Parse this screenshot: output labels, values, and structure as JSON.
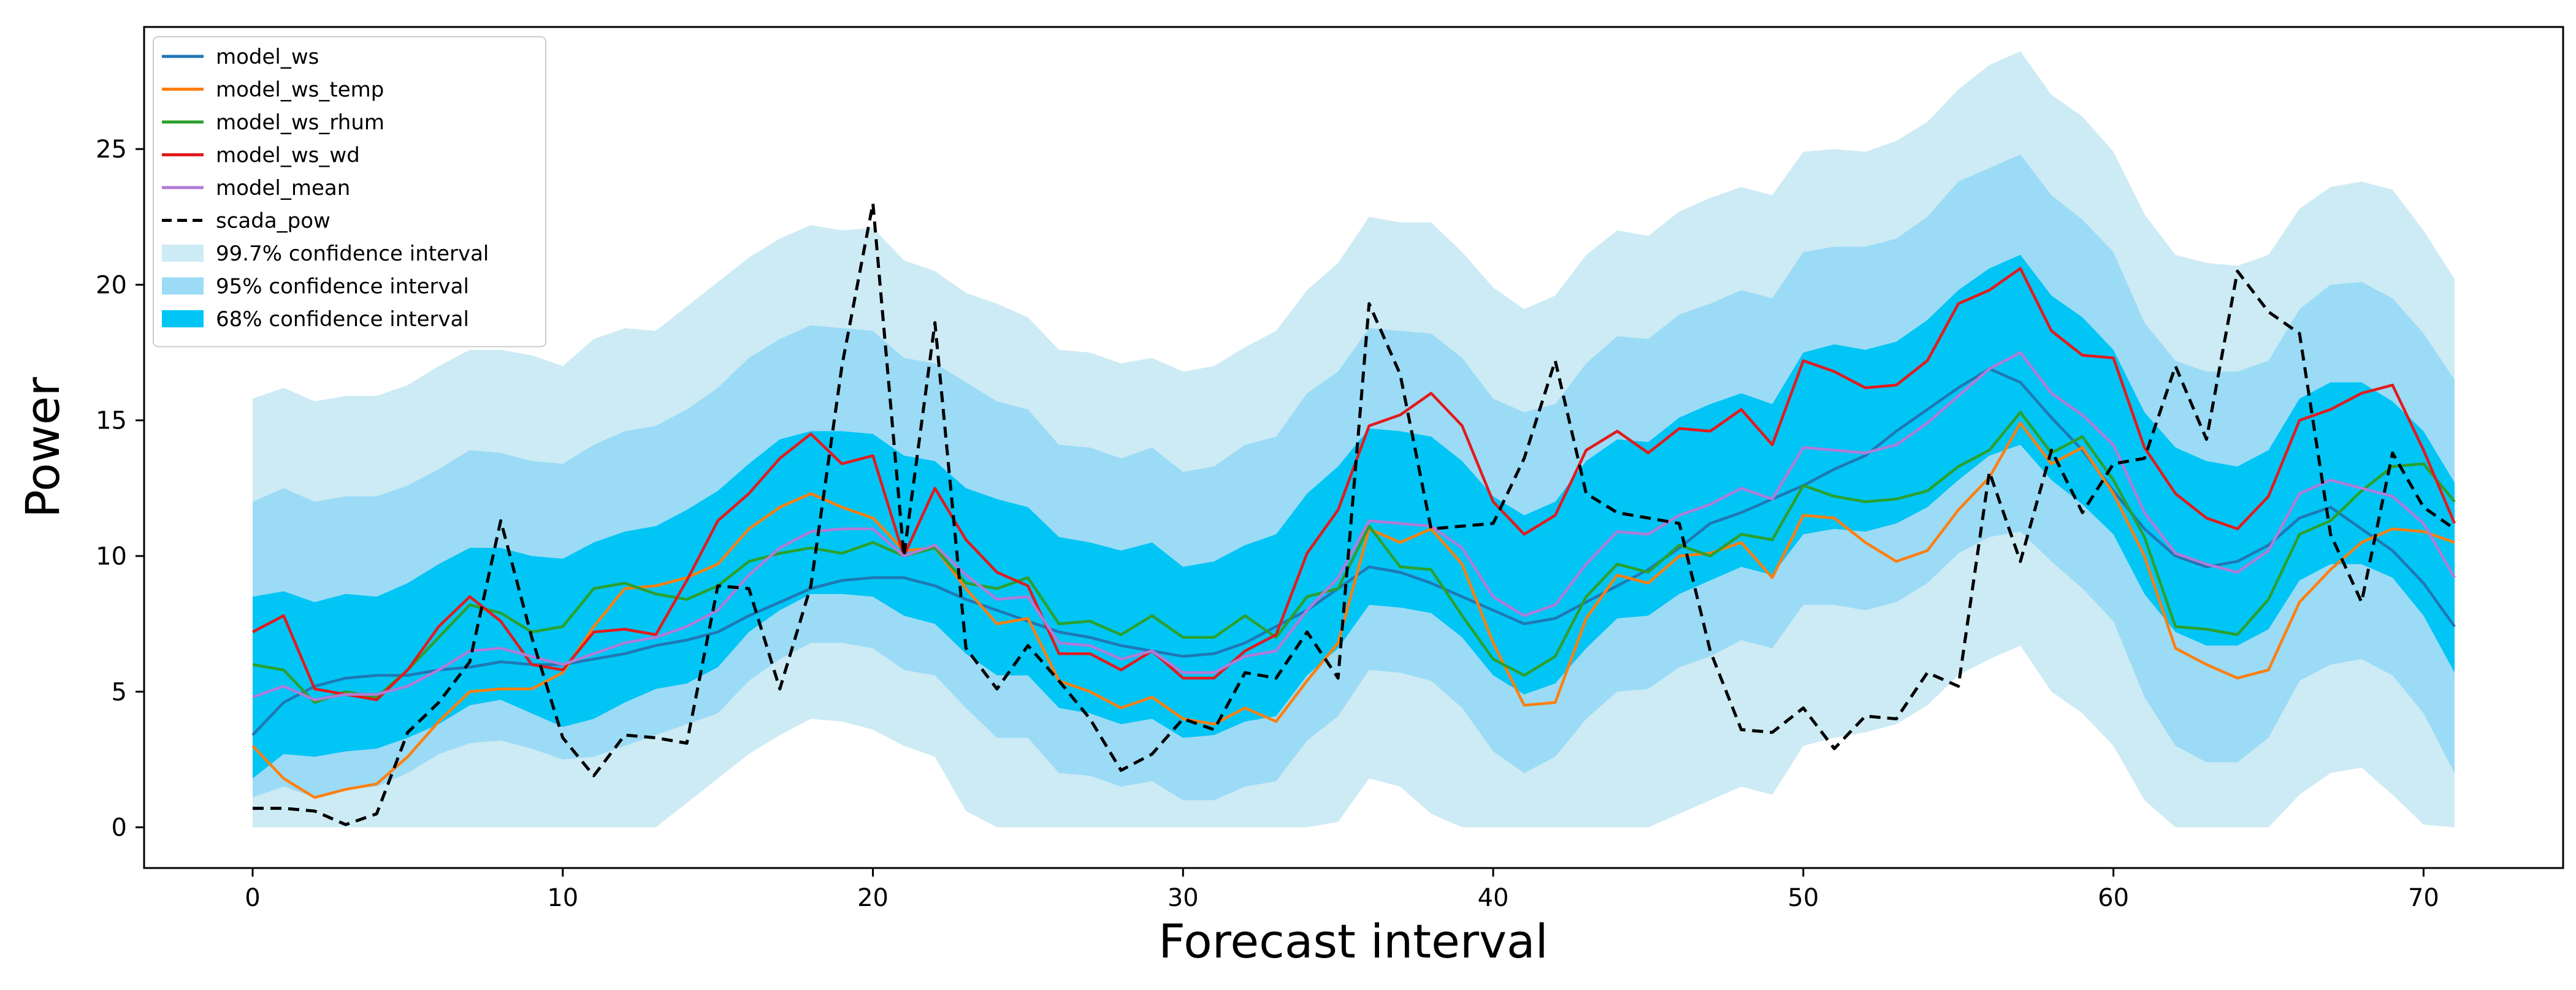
{
  "chart_data": {
    "type": "line",
    "title": "",
    "xlabel": "Forecast interval",
    "ylabel": "Power",
    "xlim": [
      -3.5,
      74.5
    ],
    "ylim": [
      -1.5,
      29.5
    ],
    "xticks": [
      0,
      10,
      20,
      30,
      40,
      50,
      60,
      70
    ],
    "yticks": [
      0,
      5,
      10,
      15,
      20,
      25
    ],
    "legend_position": "top-left",
    "colors": {
      "model_ws": "#1f77b4",
      "model_ws_temp": "#ff7f0e",
      "model_ws_rhum": "#2ca02c",
      "model_ws_wd": "#e31a1c",
      "model_mean": "#b07cd8",
      "scada_pow": "#000000",
      "ci997": "#cdebf4",
      "ci95": "#9bdbf6",
      "ci68": "#00c5f5"
    },
    "series": [
      {
        "name": "model_ws",
        "values": [
          3.4,
          4.6,
          5.2,
          5.5,
          5.6,
          5.6,
          5.8,
          5.9,
          6.1,
          6.0,
          6.0,
          6.2,
          6.4,
          6.7,
          6.9,
          7.2,
          7.8,
          8.3,
          8.8,
          9.1,
          9.2,
          9.2,
          8.9,
          8.4,
          8.0,
          7.6,
          7.2,
          7.0,
          6.7,
          6.5,
          6.3,
          6.4,
          6.8,
          7.4,
          8.0,
          8.8,
          9.6,
          9.4,
          9.0,
          8.5,
          8.0,
          7.5,
          7.7,
          8.3,
          8.9,
          9.5,
          10.3,
          11.2,
          11.6,
          12.1,
          12.6,
          13.2,
          13.7,
          14.6,
          15.4,
          16.2,
          16.9,
          16.4,
          15.1,
          13.9,
          12.4,
          11.0,
          10.0,
          9.6,
          9.8,
          10.4,
          11.4,
          11.8,
          11.0,
          10.2,
          9.0,
          7.4
        ]
      },
      {
        "name": "model_ws_temp",
        "values": [
          3.0,
          1.8,
          1.1,
          1.4,
          1.6,
          2.6,
          3.9,
          5.0,
          5.1,
          5.1,
          5.7,
          7.4,
          8.8,
          8.9,
          9.2,
          9.7,
          11.0,
          11.8,
          12.3,
          11.8,
          11.4,
          10.2,
          10.3,
          8.8,
          7.5,
          7.7,
          5.4,
          5.0,
          4.4,
          4.8,
          4.0,
          3.8,
          4.4,
          3.9,
          5.4,
          6.8,
          11.0,
          10.5,
          11.0,
          9.7,
          6.8,
          4.5,
          4.6,
          7.7,
          9.3,
          9.0,
          10.0,
          10.1,
          10.5,
          9.2,
          11.5,
          11.4,
          10.5,
          9.8,
          10.2,
          11.7,
          12.9,
          14.9,
          13.4,
          14.0,
          12.3,
          10.0,
          6.6,
          6.0,
          5.5,
          5.8,
          8.3,
          9.5,
          10.5,
          11.0,
          10.9,
          10.5
        ]
      },
      {
        "name": "model_ws_rhum",
        "values": [
          6.0,
          5.8,
          4.6,
          5.0,
          4.8,
          5.8,
          7.0,
          8.2,
          7.9,
          7.2,
          7.4,
          8.8,
          9.0,
          8.6,
          8.4,
          8.9,
          9.8,
          10.1,
          10.3,
          10.1,
          10.5,
          10.0,
          10.3,
          9.0,
          8.8,
          9.2,
          7.5,
          7.6,
          7.1,
          7.8,
          7.0,
          7.0,
          7.8,
          7.0,
          8.5,
          8.8,
          11.1,
          9.6,
          9.5,
          7.8,
          6.2,
          5.6,
          6.3,
          8.5,
          9.7,
          9.4,
          10.4,
          10.0,
          10.8,
          10.6,
          12.6,
          12.2,
          12.0,
          12.1,
          12.4,
          13.3,
          13.9,
          15.3,
          13.8,
          14.4,
          12.8,
          10.7,
          7.4,
          7.3,
          7.1,
          8.4,
          10.8,
          11.3,
          12.4,
          13.3,
          13.4,
          12.0
        ]
      },
      {
        "name": "model_ws_wd",
        "values": [
          7.2,
          7.8,
          5.1,
          4.9,
          4.7,
          5.8,
          7.4,
          8.5,
          7.6,
          6.0,
          5.8,
          7.2,
          7.3,
          7.1,
          9.1,
          11.3,
          12.3,
          13.6,
          14.5,
          13.4,
          13.7,
          10.0,
          12.5,
          10.6,
          9.4,
          8.9,
          6.4,
          6.4,
          5.8,
          6.5,
          5.5,
          5.5,
          6.5,
          7.1,
          10.1,
          11.7,
          14.8,
          15.2,
          16.0,
          14.8,
          12.0,
          10.8,
          11.5,
          13.9,
          14.6,
          13.8,
          14.7,
          14.6,
          15.4,
          14.1,
          17.2,
          16.8,
          16.2,
          16.3,
          17.2,
          19.3,
          19.8,
          20.6,
          18.3,
          17.4,
          17.3,
          14.0,
          12.3,
          11.4,
          11.0,
          12.2,
          15.0,
          15.4,
          16.0,
          16.3,
          13.9,
          11.2
        ]
      },
      {
        "name": "model_mean",
        "values": [
          4.8,
          5.2,
          4.7,
          4.9,
          4.9,
          5.2,
          5.8,
          6.5,
          6.6,
          6.3,
          6.0,
          6.4,
          6.8,
          7.0,
          7.4,
          8.0,
          9.3,
          10.3,
          10.9,
          11.0,
          11.0,
          10.0,
          10.4,
          9.3,
          8.4,
          8.5,
          6.8,
          6.7,
          6.2,
          6.5,
          5.7,
          5.7,
          6.3,
          6.5,
          8.0,
          9.2,
          11.3,
          11.2,
          11.1,
          10.3,
          8.5,
          7.8,
          8.2,
          9.7,
          10.9,
          10.8,
          11.5,
          11.9,
          12.5,
          12.1,
          14.0,
          13.9,
          13.8,
          14.1,
          14.9,
          15.9,
          16.9,
          17.5,
          16.0,
          15.2,
          14.1,
          11.6,
          10.1,
          9.7,
          9.4,
          10.2,
          12.3,
          12.8,
          12.5,
          12.2,
          11.2,
          9.2
        ]
      },
      {
        "name": "scada_pow",
        "values": [
          0.7,
          0.7,
          0.6,
          0.1,
          0.5,
          3.5,
          4.6,
          6.1,
          11.3,
          7.0,
          3.3,
          1.9,
          3.4,
          3.3,
          3.1,
          8.9,
          8.8,
          5.1,
          8.9,
          17.0,
          23.0,
          10.0,
          18.6,
          6.6,
          5.1,
          6.7,
          5.4,
          4.0,
          2.1,
          2.7,
          4.0,
          3.6,
          5.7,
          5.5,
          7.2,
          5.5,
          19.3,
          16.7,
          11.0,
          11.1,
          11.2,
          13.6,
          17.2,
          12.3,
          11.6,
          11.4,
          11.2,
          6.5,
          3.6,
          3.5,
          4.4,
          2.9,
          4.1,
          4.0,
          5.7,
          5.2,
          13.1,
          9.8,
          13.9,
          11.6,
          13.4,
          13.6,
          17.0,
          14.3,
          20.5,
          19.0,
          18.2,
          10.8,
          8.3,
          13.8,
          11.8,
          11.0
        ]
      }
    ],
    "bands": [
      {
        "name": "99.7% confidence interval",
        "lower": [
          0.0,
          0.0,
          0.0,
          0.0,
          0.0,
          0.0,
          0.0,
          0.0,
          0.0,
          0.0,
          0.0,
          0.0,
          0.0,
          0.0,
          0.9,
          1.8,
          2.7,
          3.4,
          4.0,
          3.9,
          3.6,
          3.0,
          2.6,
          0.6,
          0.0,
          0.0,
          0.0,
          0.0,
          0.0,
          0.0,
          0.0,
          0.0,
          0.0,
          0.0,
          0.0,
          0.2,
          1.8,
          1.5,
          0.5,
          0.0,
          0.0,
          0.0,
          0.0,
          0.0,
          0.0,
          0.0,
          0.5,
          1.0,
          1.5,
          1.2,
          3.0,
          3.3,
          3.5,
          3.8,
          4.5,
          5.6,
          6.2,
          6.7,
          5.0,
          4.2,
          3.0,
          1.0,
          0.0,
          0.0,
          0.0,
          0.0,
          1.2,
          2.0,
          2.2,
          1.2,
          0.1,
          0.0
        ],
        "upper": [
          15.8,
          16.2,
          15.7,
          15.9,
          15.9,
          16.3,
          17.0,
          17.6,
          17.6,
          17.4,
          17.0,
          18.0,
          18.4,
          18.3,
          19.2,
          20.1,
          21.0,
          21.7,
          22.2,
          22.0,
          22.1,
          20.9,
          20.5,
          19.7,
          19.3,
          18.8,
          17.6,
          17.5,
          17.1,
          17.3,
          16.8,
          17.0,
          17.7,
          18.3,
          19.8,
          20.8,
          22.5,
          22.3,
          22.3,
          21.2,
          19.9,
          19.1,
          19.6,
          21.1,
          22.0,
          21.8,
          22.7,
          23.2,
          23.6,
          23.3,
          24.9,
          25.0,
          24.9,
          25.3,
          26.0,
          27.2,
          28.1,
          28.6,
          27.0,
          26.2,
          24.9,
          22.6,
          21.1,
          20.8,
          20.7,
          21.1,
          22.8,
          23.6,
          23.8,
          23.5,
          22.0,
          20.2
        ]
      },
      {
        "name": "95% confidence interval",
        "lower": [
          1.1,
          1.5,
          1.1,
          1.4,
          1.5,
          2.0,
          2.7,
          3.1,
          3.2,
          2.9,
          2.5,
          2.6,
          3.0,
          3.4,
          3.8,
          4.2,
          5.4,
          6.2,
          6.8,
          6.8,
          6.6,
          5.8,
          5.6,
          4.4,
          3.3,
          3.3,
          2.0,
          1.9,
          1.5,
          1.7,
          1.0,
          1.0,
          1.5,
          1.7,
          3.2,
          4.1,
          5.8,
          5.7,
          5.4,
          4.4,
          2.8,
          2.0,
          2.6,
          4.0,
          5.0,
          5.1,
          5.9,
          6.3,
          6.9,
          6.6,
          8.2,
          8.2,
          8.0,
          8.3,
          9.0,
          10.1,
          10.7,
          10.9,
          9.8,
          8.8,
          7.6,
          4.8,
          3.0,
          2.4,
          2.4,
          3.3,
          5.4,
          6.0,
          6.2,
          5.6,
          4.2,
          2.0
        ],
        "upper": [
          12.0,
          12.5,
          12.0,
          12.2,
          12.2,
          12.6,
          13.2,
          13.9,
          13.8,
          13.5,
          13.4,
          14.1,
          14.6,
          14.8,
          15.4,
          16.2,
          17.3,
          18.0,
          18.5,
          18.4,
          18.3,
          17.3,
          17.1,
          16.4,
          15.7,
          15.4,
          14.1,
          14.0,
          13.6,
          14.0,
          13.1,
          13.3,
          14.1,
          14.4,
          16.0,
          16.8,
          18.4,
          18.3,
          18.2,
          17.3,
          15.8,
          15.3,
          15.6,
          17.1,
          18.1,
          18.0,
          18.9,
          19.3,
          19.8,
          19.5,
          21.2,
          21.4,
          21.4,
          21.7,
          22.5,
          23.8,
          24.3,
          24.8,
          23.3,
          22.4,
          21.2,
          18.6,
          17.2,
          16.8,
          16.8,
          17.2,
          19.1,
          20.0,
          20.1,
          19.5,
          18.2,
          16.5
        ]
      },
      {
        "name": "68% confidence interval",
        "lower": [
          1.8,
          2.7,
          2.6,
          2.8,
          2.9,
          3.3,
          3.8,
          4.5,
          4.7,
          4.2,
          3.7,
          4.0,
          4.6,
          5.1,
          5.3,
          5.9,
          7.2,
          8.0,
          8.6,
          8.6,
          8.5,
          7.8,
          7.5,
          6.4,
          5.6,
          5.6,
          4.4,
          4.2,
          3.8,
          4.0,
          3.3,
          3.4,
          3.9,
          4.1,
          5.6,
          6.6,
          8.2,
          8.1,
          7.9,
          7.0,
          5.6,
          4.9,
          5.3,
          6.6,
          7.7,
          7.8,
          8.6,
          9.1,
          9.6,
          9.3,
          10.8,
          11.0,
          10.9,
          11.2,
          11.8,
          12.8,
          13.7,
          14.1,
          12.8,
          11.9,
          10.8,
          8.6,
          7.2,
          6.7,
          6.7,
          7.3,
          9.1,
          9.7,
          9.7,
          9.2,
          7.8,
          5.7
        ],
        "upper": [
          8.5,
          8.7,
          8.3,
          8.6,
          8.5,
          9.0,
          9.7,
          10.3,
          10.3,
          10.0,
          9.9,
          10.5,
          10.9,
          11.1,
          11.7,
          12.4,
          13.4,
          14.3,
          14.6,
          14.6,
          14.5,
          13.7,
          13.5,
          12.5,
          12.1,
          11.8,
          10.7,
          10.5,
          10.2,
          10.5,
          9.6,
          9.8,
          10.4,
          10.8,
          12.3,
          13.3,
          14.7,
          14.6,
          14.4,
          13.5,
          12.2,
          11.5,
          12.0,
          13.5,
          14.3,
          14.2,
          15.1,
          15.6,
          16.0,
          15.6,
          17.5,
          17.8,
          17.6,
          17.9,
          18.7,
          19.8,
          20.6,
          21.1,
          19.6,
          18.8,
          17.6,
          15.3,
          14.0,
          13.5,
          13.3,
          13.9,
          15.8,
          16.4,
          16.4,
          15.7,
          14.6,
          12.7
        ]
      }
    ],
    "legend": [
      "model_ws",
      "model_ws_temp",
      "model_ws_rhum",
      "model_ws_wd",
      "model_mean",
      "scada_pow",
      "99.7% confidence interval",
      "95% confidence interval",
      "68% confidence interval"
    ]
  }
}
